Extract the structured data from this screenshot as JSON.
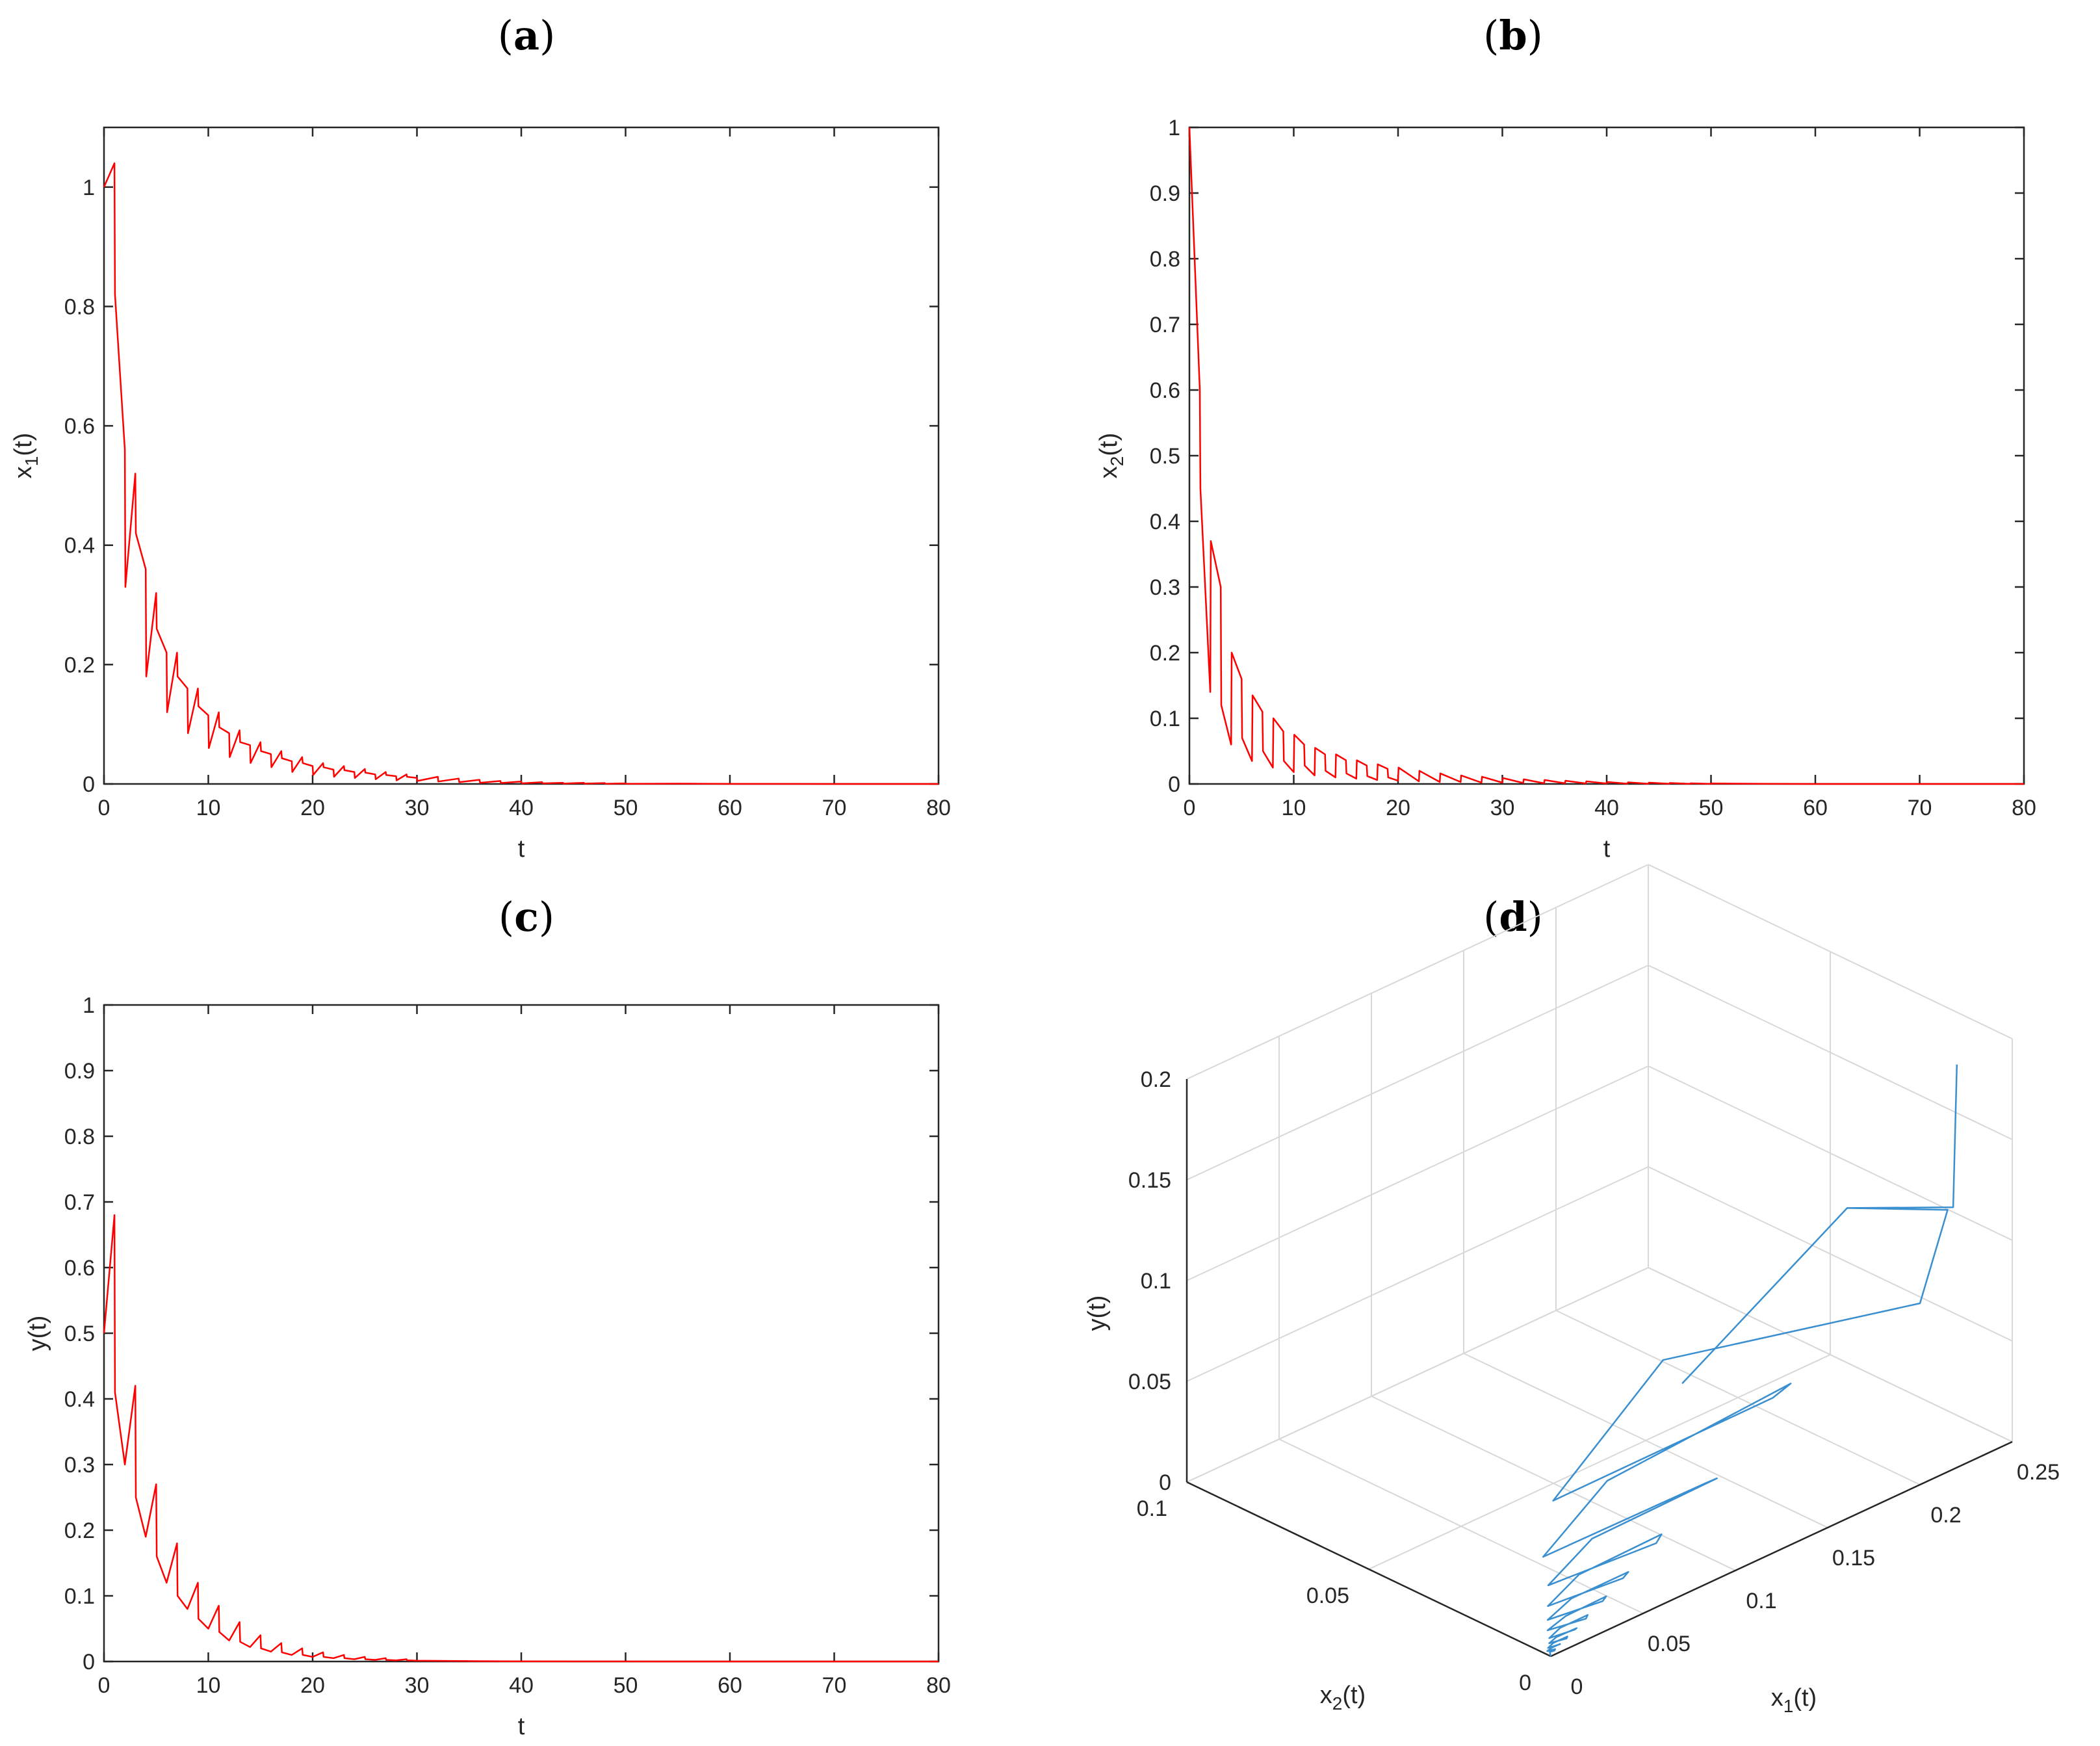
{
  "chart_data": [
    {
      "id": "a",
      "type": "line",
      "panel_label": "a",
      "xlabel": "t",
      "ylabel_main": "x",
      "ylabel_sub": "1",
      "ylabel_tail": "(t)",
      "xlim": [
        0,
        80
      ],
      "ylim": [
        0,
        1.1
      ],
      "xticks": [
        0,
        10,
        20,
        30,
        40,
        50,
        60,
        70,
        80
      ],
      "yticks": [
        0,
        0.2,
        0.4,
        0.6,
        0.8,
        1
      ],
      "ytick_labels": [
        "0",
        "0.2",
        "0.4",
        "0.6",
        "0.8",
        "1"
      ],
      "color": "#ff0000",
      "x": [
        0,
        1,
        1.05,
        2,
        2.05,
        3,
        3.05,
        4,
        4.05,
        5,
        5.05,
        6,
        6.05,
        7,
        7.05,
        8,
        8.05,
        9,
        9.05,
        10,
        10.05,
        11,
        11.05,
        12,
        12.05,
        13,
        13.05,
        14,
        14.05,
        15,
        15.05,
        16,
        16.05,
        17,
        17.05,
        18,
        18.05,
        19,
        19.05,
        20,
        20.05,
        21,
        21.05,
        22,
        22.05,
        23,
        23.05,
        24,
        24.05,
        25,
        25.05,
        26,
        26.05,
        27,
        27.05,
        28,
        28.05,
        29,
        29.05,
        30,
        30.05,
        32,
        32.05,
        34,
        34.05,
        36,
        36.05,
        38,
        38.05,
        40,
        40.05,
        42,
        42.05,
        44,
        44.05,
        46,
        46.05,
        48,
        48.05,
        50,
        50.05,
        55,
        60,
        65,
        70,
        80
      ],
      "y": [
        1.0,
        1.04,
        0.82,
        0.56,
        0.33,
        0.52,
        0.42,
        0.36,
        0.18,
        0.32,
        0.26,
        0.22,
        0.12,
        0.22,
        0.18,
        0.16,
        0.085,
        0.16,
        0.13,
        0.115,
        0.06,
        0.12,
        0.095,
        0.085,
        0.045,
        0.09,
        0.07,
        0.065,
        0.035,
        0.07,
        0.055,
        0.05,
        0.028,
        0.055,
        0.043,
        0.038,
        0.02,
        0.045,
        0.035,
        0.03,
        0.015,
        0.035,
        0.028,
        0.024,
        0.012,
        0.03,
        0.023,
        0.02,
        0.01,
        0.025,
        0.019,
        0.016,
        0.008,
        0.02,
        0.015,
        0.013,
        0.006,
        0.016,
        0.012,
        0.01,
        0.005,
        0.012,
        0.004,
        0.009,
        0.003,
        0.007,
        0.002,
        0.005,
        0.0015,
        0.004,
        0.001,
        0.003,
        0.001,
        0.002,
        0.0005,
        0.002,
        0.0005,
        0.0015,
        0.0003,
        0.001,
        0.0002,
        0.0005,
        0.0001,
        0.0001,
        0.0,
        0.0
      ]
    },
    {
      "id": "b",
      "type": "line",
      "panel_label": "b",
      "xlabel": "t",
      "ylabel_main": "x",
      "ylabel_sub": "2",
      "ylabel_tail": "(t)",
      "xlim": [
        0,
        80
      ],
      "ylim": [
        0,
        1
      ],
      "xticks": [
        0,
        10,
        20,
        30,
        40,
        50,
        60,
        70,
        80
      ],
      "yticks": [
        0,
        0.1,
        0.2,
        0.3,
        0.4,
        0.5,
        0.6,
        0.7,
        0.8,
        0.9,
        1
      ],
      "ytick_labels": [
        "0",
        "0.1",
        "0.2",
        "0.3",
        "0.4",
        "0.5",
        "0.6",
        "0.7",
        "0.8",
        "0.9",
        "1"
      ],
      "color": "#ff0000",
      "x": [
        0,
        0.5,
        1,
        1.05,
        2,
        2.05,
        3,
        3.05,
        4,
        4.05,
        5,
        5.05,
        6,
        6.05,
        7,
        7.05,
        8,
        8.05,
        9,
        9.05,
        10,
        10.05,
        11,
        11.05,
        12,
        12.05,
        13,
        13.05,
        14,
        14.05,
        15,
        15.05,
        16,
        16.05,
        17,
        17.05,
        18,
        18.05,
        19,
        19.05,
        20,
        20.05,
        22,
        22.05,
        24,
        24.05,
        26,
        26.05,
        28,
        28.05,
        30,
        30.05,
        32,
        32.05,
        34,
        34.05,
        36,
        36.05,
        38,
        38.05,
        40,
        40.05,
        42,
        42.05,
        44,
        44.05,
        46,
        46.05,
        48,
        48.05,
        50,
        50.05,
        55,
        60,
        65,
        70,
        80
      ],
      "y": [
        1.0,
        0.8,
        0.6,
        0.45,
        0.14,
        0.37,
        0.3,
        0.12,
        0.06,
        0.2,
        0.16,
        0.07,
        0.035,
        0.135,
        0.11,
        0.05,
        0.025,
        0.1,
        0.08,
        0.035,
        0.018,
        0.075,
        0.06,
        0.028,
        0.013,
        0.055,
        0.045,
        0.02,
        0.01,
        0.045,
        0.036,
        0.016,
        0.008,
        0.036,
        0.028,
        0.012,
        0.006,
        0.03,
        0.023,
        0.01,
        0.005,
        0.025,
        0.004,
        0.02,
        0.003,
        0.016,
        0.003,
        0.013,
        0.002,
        0.011,
        0.002,
        0.009,
        0.0015,
        0.007,
        0.001,
        0.006,
        0.001,
        0.005,
        0.0008,
        0.004,
        0.0006,
        0.003,
        0.0004,
        0.0025,
        0.0003,
        0.002,
        0.0002,
        0.0015,
        0.0001,
        0.001,
        0.0001,
        0.0007,
        0.0002,
        0.0,
        0.0,
        0.0,
        0.0
      ]
    },
    {
      "id": "c",
      "type": "line",
      "panel_label": "c",
      "xlabel": "t",
      "ylabel_main": "y(t)",
      "ylabel_sub": "",
      "ylabel_tail": "",
      "xlim": [
        0,
        80
      ],
      "ylim": [
        0,
        1
      ],
      "xticks": [
        0,
        10,
        20,
        30,
        40,
        50,
        60,
        70,
        80
      ],
      "yticks": [
        0,
        0.1,
        0.2,
        0.3,
        0.4,
        0.5,
        0.6,
        0.7,
        0.8,
        0.9,
        1
      ],
      "ytick_labels": [
        "0",
        "0.1",
        "0.2",
        "0.3",
        "0.4",
        "0.5",
        "0.6",
        "0.7",
        "0.8",
        "0.9",
        "1"
      ],
      "color": "#ff0000",
      "x": [
        0,
        1,
        1.05,
        2,
        3,
        3.05,
        4,
        5,
        5.05,
        6,
        7,
        7.05,
        8,
        9,
        9.05,
        10,
        11,
        11.05,
        12,
        13,
        13.05,
        14,
        15,
        15.05,
        16,
        17,
        17.05,
        18,
        19,
        19.05,
        20,
        21,
        21.05,
        22,
        23,
        23.05,
        24,
        25,
        25.05,
        26,
        27,
        27.05,
        28,
        29,
        29.05,
        30,
        32,
        34,
        36,
        40,
        45,
        50,
        57,
        60,
        70,
        80
      ],
      "y": [
        0.5,
        0.68,
        0.41,
        0.3,
        0.42,
        0.25,
        0.19,
        0.27,
        0.16,
        0.12,
        0.18,
        0.1,
        0.08,
        0.12,
        0.065,
        0.05,
        0.085,
        0.045,
        0.032,
        0.06,
        0.03,
        0.022,
        0.04,
        0.02,
        0.015,
        0.028,
        0.014,
        0.01,
        0.02,
        0.01,
        0.007,
        0.014,
        0.007,
        0.005,
        0.01,
        0.005,
        0.0035,
        0.007,
        0.0035,
        0.0025,
        0.005,
        0.0025,
        0.0018,
        0.0035,
        0.0018,
        0.0013,
        0.001,
        0.0007,
        0.0005,
        0.0003,
        0.0001,
        0.0001,
        0.0,
        0.0,
        0.0,
        0.0
      ]
    },
    {
      "id": "d",
      "type": "line3d",
      "panel_label": "d",
      "xlabel_main": "x",
      "xlabel_sub": "1",
      "xlabel_tail": "(t)",
      "ylabel_main": "x",
      "ylabel_sub": "2",
      "ylabel_tail": "(t)",
      "zlabel": "y(t)",
      "x1lim": [
        0,
        0.25
      ],
      "x2lim": [
        0,
        0.1
      ],
      "zlim": [
        0,
        0.2
      ],
      "x1ticks": [
        0,
        0.05,
        0.1,
        0.15,
        0.2,
        0.25
      ],
      "x1tick_labels": [
        "0",
        "0.05",
        "0.1",
        "0.15",
        "0.2",
        "0.25"
      ],
      "x2ticks": [
        0,
        0.05,
        0.1
      ],
      "x2tick_labels": [
        "0",
        "0.05",
        "0.1"
      ],
      "zticks": [
        0,
        0.05,
        0.1,
        0.15,
        0.2
      ],
      "ztick_labels": [
        "0",
        "0.05",
        "0.1",
        "0.15",
        "0.2"
      ],
      "color": "#3a8fd0",
      "x1": [
        0.22,
        0.218,
        0.2,
        0.17,
        0.2,
        0.215,
        0.2,
        0.12,
        0.09,
        0.14,
        0.13,
        0.07,
        0.055,
        0.095,
        0.09,
        0.05,
        0.04,
        0.065,
        0.06,
        0.035,
        0.028,
        0.045,
        0.042,
        0.025,
        0.02,
        0.032,
        0.03,
        0.018,
        0.014,
        0.022,
        0.02,
        0.012,
        0.01,
        0.015,
        0.014,
        0.008,
        0.007,
        0.01,
        0.009,
        0.005,
        0.004,
        0.006,
        0.005,
        0.003,
        0.002,
        0.003,
        0.002,
        0.001,
        0.0
      ],
      "x2": [
        0.0,
        0.0,
        0.02,
        0.05,
        0.02,
        0.0,
        0.0,
        0.03,
        0.045,
        0.01,
        0.0,
        0.02,
        0.03,
        0.006,
        0.0,
        0.014,
        0.021,
        0.004,
        0.0,
        0.01,
        0.015,
        0.003,
        0.0,
        0.007,
        0.011,
        0.002,
        0.0,
        0.005,
        0.008,
        0.0015,
        0.0,
        0.0035,
        0.0055,
        0.001,
        0.0,
        0.0025,
        0.004,
        0.0007,
        0.0,
        0.0018,
        0.0028,
        0.0005,
        0.0,
        0.0012,
        0.002,
        0.0003,
        0.0,
        0.0008,
        0.0
      ],
      "z": [
        0.2,
        0.13,
        0.12,
        0.02,
        0.12,
        0.13,
        0.09,
        0.07,
        0.0,
        0.06,
        0.08,
        0.04,
        0.0,
        0.04,
        0.05,
        0.025,
        0.0,
        0.025,
        0.035,
        0.017,
        0.0,
        0.017,
        0.024,
        0.012,
        0.0,
        0.012,
        0.017,
        0.008,
        0.0,
        0.008,
        0.012,
        0.006,
        0.0,
        0.006,
        0.008,
        0.004,
        0.0,
        0.004,
        0.006,
        0.003,
        0.0,
        0.003,
        0.004,
        0.002,
        0.0,
        0.002,
        0.002,
        0.001,
        0.0
      ]
    }
  ]
}
